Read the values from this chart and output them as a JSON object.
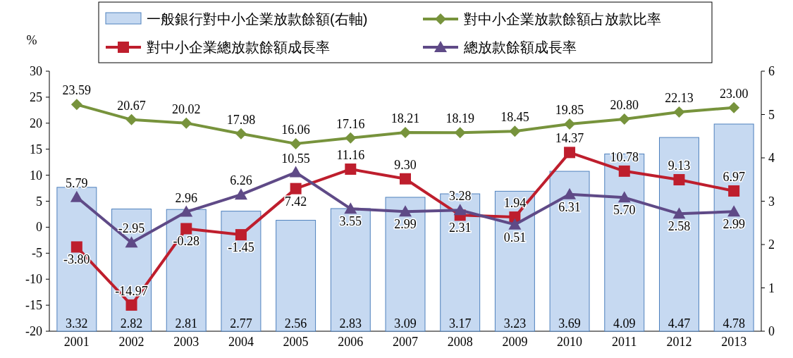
{
  "chart_data": {
    "type": "bar",
    "ylabel": "%",
    "categories": [
      "2001",
      "2002",
      "2003",
      "2004",
      "2005",
      "2006",
      "2007",
      "2008",
      "2009",
      "2010",
      "2011",
      "2012",
      "2013"
    ],
    "ylim": [
      -20,
      30
    ],
    "yticks": [
      -20,
      -15,
      -10,
      -5,
      0,
      5,
      10,
      15,
      20,
      25,
      30
    ],
    "y2lim": [
      0,
      6
    ],
    "y2ticks": [
      0,
      1,
      2,
      3,
      4,
      5,
      6
    ],
    "legend": "top",
    "grid": false,
    "series": [
      {
        "name": "一般銀行對中小企業放款餘額(右軸)",
        "axis": "y2",
        "color": "#c6d9f1",
        "values": [
          3.32,
          2.82,
          2.81,
          2.77,
          2.56,
          2.83,
          3.09,
          3.17,
          3.23,
          3.69,
          4.09,
          4.47,
          4.78
        ],
        "value_labels": [
          "3.32",
          "2.82",
          "2.81",
          "2.77",
          "2.56",
          "2.83",
          "3.09",
          "3.17",
          "3.23",
          "3.69",
          "4.09",
          "4.47",
          "4.78"
        ]
      },
      {
        "name": "對中小企業放款餘額占放款比率",
        "type": "line",
        "marker": "diamond",
        "color": "#77933c",
        "values": [
          23.59,
          20.67,
          20.02,
          17.98,
          16.06,
          17.16,
          18.21,
          18.19,
          18.45,
          19.85,
          20.8,
          22.13,
          23.0
        ],
        "value_labels": [
          "23.59",
          "20.67",
          "20.02",
          "17.98",
          "16.06",
          "17.16",
          "18.21",
          "18.19",
          "18.45",
          "19.85",
          "20.80",
          "22.13",
          "23.00"
        ]
      },
      {
        "name": "對中小企業總放款餘額成長率",
        "type": "line",
        "marker": "square",
        "color": "#be1e2d",
        "values": [
          -3.8,
          -14.97,
          -0.28,
          -1.45,
          7.42,
          11.16,
          9.3,
          2.31,
          1.94,
          14.37,
          10.78,
          9.13,
          6.97
        ],
        "value_labels": [
          "-3.80",
          "-14.97",
          "-0.28",
          "-1.45",
          "7.42",
          "11.16",
          "9.30",
          "2.31",
          "1.94",
          "14.37",
          "10.78",
          "9.13",
          "6.97"
        ]
      },
      {
        "name": "總放款餘額成長率",
        "type": "line",
        "marker": "triangle",
        "color": "#5f4a87",
        "values": [
          5.79,
          -2.95,
          2.96,
          6.26,
          10.55,
          3.55,
          2.99,
          3.28,
          0.51,
          6.31,
          5.7,
          2.58,
          2.99
        ],
        "value_labels": [
          "5.79",
          "-2.95",
          "2.96",
          "6.26",
          "10.55",
          "3.55",
          "2.99",
          "3.28",
          "0.51",
          "6.31",
          "5.70",
          "2.58",
          "2.99"
        ]
      }
    ]
  }
}
